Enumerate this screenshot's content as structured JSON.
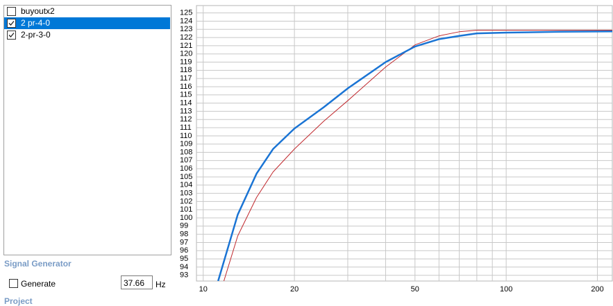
{
  "list": {
    "items": [
      {
        "label": "buyoutx2",
        "checked": false,
        "selected": false
      },
      {
        "label": "2 pr-4-0",
        "checked": true,
        "selected": true
      },
      {
        "label": "2-pr-3-0",
        "checked": true,
        "selected": false
      }
    ]
  },
  "signal_generator": {
    "title": "Signal Generator",
    "generate_label": "Generate",
    "generate_checked": false,
    "frequency": "37.66",
    "unit": "Hz"
  },
  "next_section": "Project",
  "chart_data": {
    "type": "line",
    "log_x": true,
    "grid": true,
    "xlim": [
      9.5,
      224
    ],
    "ylim": [
      92.3,
      125.9
    ],
    "xticks": [
      10,
      20,
      50,
      100,
      200
    ],
    "xgrid": [
      10,
      20,
      30,
      40,
      50,
      60,
      70,
      80,
      90,
      100,
      200
    ],
    "yticks": [
      93,
      94,
      95,
      96,
      97,
      98,
      99,
      100,
      101,
      102,
      103,
      104,
      105,
      106,
      107,
      108,
      109,
      110,
      111,
      112,
      113,
      114,
      115,
      116,
      117,
      118,
      119,
      120,
      121,
      122,
      123,
      124,
      125
    ],
    "series": [
      {
        "color": "#c0282d",
        "width": 1,
        "x": [
          11.7,
          13,
          15,
          17,
          20,
          25,
          30,
          40,
          50,
          60,
          70,
          80,
          100,
          150,
          224
        ],
        "values": [
          92.3,
          97.8,
          102.5,
          105.6,
          108.4,
          111.8,
          114.3,
          118.4,
          121.1,
          122.2,
          122.7,
          122.9,
          122.9,
          122.9,
          122.9
        ]
      },
      {
        "color": "#1a74d4",
        "width": 2.5,
        "x": [
          11.2,
          13,
          15,
          17,
          20,
          25,
          30,
          40,
          50,
          60,
          70,
          80,
          100,
          150,
          224
        ],
        "values": [
          92.3,
          100.4,
          105.4,
          108.4,
          110.9,
          113.5,
          115.8,
          119,
          120.9,
          121.8,
          122.2,
          122.5,
          122.6,
          122.7,
          122.75
        ]
      }
    ]
  }
}
